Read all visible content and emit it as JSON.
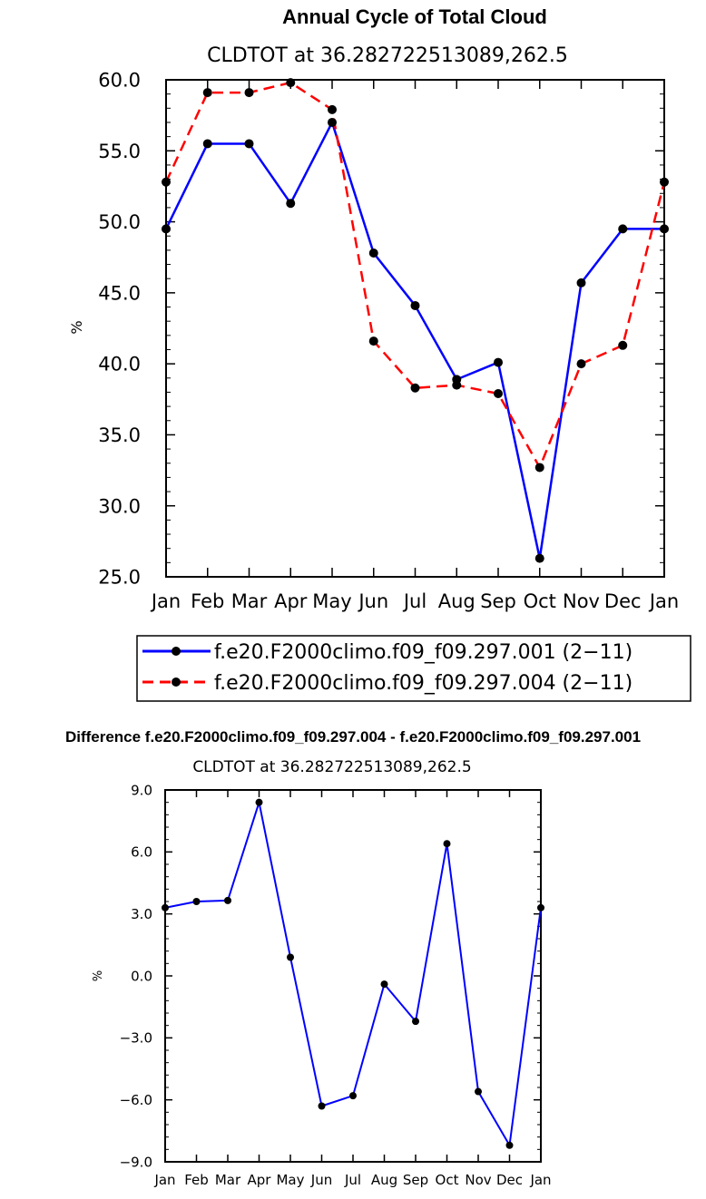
{
  "chart_data": [
    {
      "type": "line",
      "title": "Annual Cycle of Total Cloud",
      "subtitle": "CLDTOT at 36.282722513089,262.5",
      "ylabel": "%",
      "xlabel": "",
      "categories": [
        "Jan",
        "Feb",
        "Mar",
        "Apr",
        "May",
        "Jun",
        "Jul",
        "Aug",
        "Sep",
        "Oct",
        "Nov",
        "Dec",
        "Jan"
      ],
      "yticks": [
        "25.0",
        "30.0",
        "35.0",
        "40.0",
        "45.0",
        "50.0",
        "55.0",
        "60.0"
      ],
      "ylim": [
        25,
        60
      ],
      "grid": false,
      "legend_position": "bottom",
      "series": [
        {
          "name": "f.e20.F2000climo.f09_f09.297.001 (2−11)",
          "color": "#0000ff",
          "dash": "solid",
          "values": [
            49.5,
            55.5,
            55.5,
            51.3,
            57.0,
            47.8,
            44.1,
            38.9,
            40.1,
            26.3,
            45.7,
            49.5,
            49.5
          ]
        },
        {
          "name": "f.e20.F2000climo.f09_f09.297.004 (2−11)",
          "color": "#ff0000",
          "dash": "dashed",
          "values": [
            52.8,
            59.1,
            59.1,
            59.8,
            57.9,
            41.6,
            38.3,
            38.5,
            37.9,
            32.7,
            40.0,
            41.3,
            52.8
          ]
        }
      ]
    },
    {
      "type": "line",
      "title": "Difference f.e20.F2000climo.f09_f09.297.004 - f.e20.F2000climo.f09_f09.297.001",
      "subtitle": "CLDTOT at 36.282722513089,262.5",
      "ylabel": "%",
      "xlabel": "",
      "categories": [
        "Jan",
        "Feb",
        "Mar",
        "Apr",
        "May",
        "Jun",
        "Jul",
        "Aug",
        "Sep",
        "Oct",
        "Nov",
        "Dec",
        "Jan"
      ],
      "yticks": [
        "−9.0",
        "−6.0",
        "−3.0",
        "0.0",
        "3.0",
        "6.0",
        "9.0"
      ],
      "ylim": [
        -9,
        9
      ],
      "grid": false,
      "series": [
        {
          "color": "#0000ff",
          "dash": "solid",
          "values": [
            3.3,
            3.6,
            3.65,
            8.4,
            0.9,
            -6.3,
            -5.8,
            -0.4,
            -2.2,
            6.4,
            -5.6,
            -8.2,
            3.3
          ]
        }
      ]
    }
  ]
}
